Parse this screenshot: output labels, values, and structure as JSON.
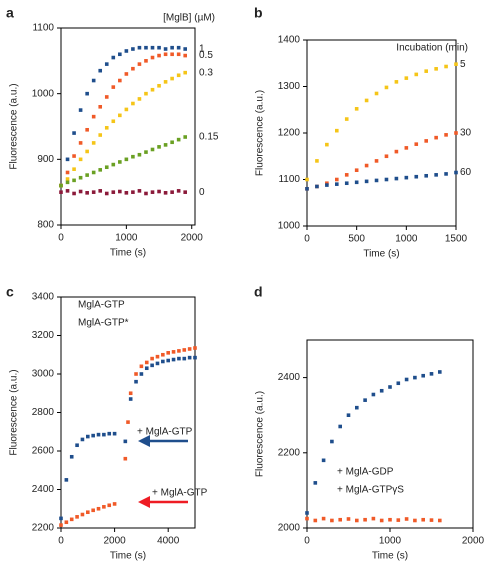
{
  "chart_data": [
    {
      "type": "scatter",
      "panel": "a",
      "xlabel": "Time (s)",
      "ylabel": "Fluorescence (a.u.)",
      "legend_title": "[MglB] (µM)",
      "legend": "end-labels",
      "xlim": [
        0,
        2050
      ],
      "ylim": [
        800,
        1100
      ],
      "xticks": [
        0,
        1000,
        2000
      ],
      "yticks": [
        800,
        900,
        1000,
        1100
      ],
      "x": [
        0,
        100,
        200,
        300,
        400,
        500,
        600,
        700,
        800,
        900,
        1000,
        1100,
        1200,
        1300,
        1400,
        1500,
        1600,
        1700,
        1800,
        1900
      ],
      "series": [
        {
          "name": "1",
          "color": "#1f4e8c",
          "values": [
            860,
            900,
            940,
            975,
            1000,
            1020,
            1035,
            1045,
            1055,
            1060,
            1065,
            1068,
            1070,
            1070,
            1070,
            1070,
            1068,
            1070,
            1070,
            1068
          ]
        },
        {
          "name": "0.5",
          "color": "#f05a28",
          "values": [
            860,
            880,
            905,
            925,
            945,
            965,
            980,
            995,
            1010,
            1020,
            1030,
            1038,
            1045,
            1050,
            1055,
            1058,
            1060,
            1060,
            1060,
            1058
          ]
        },
        {
          "name": "0.3",
          "color": "#f5c518",
          "values": [
            860,
            870,
            885,
            900,
            912,
            925,
            937,
            948,
            958,
            967,
            976,
            985,
            992,
            1000,
            1006,
            1012,
            1018,
            1023,
            1028,
            1032
          ]
        },
        {
          "name": "0.15",
          "color": "#6aa023",
          "values": [
            860,
            865,
            868,
            872,
            876,
            880,
            884,
            888,
            892,
            896,
            900,
            904,
            907,
            911,
            915,
            919,
            922,
            926,
            930,
            934
          ]
        },
        {
          "name": "0",
          "color": "#8b1a3a",
          "values": [
            850,
            852,
            848,
            851,
            849,
            850,
            852,
            848,
            850,
            851,
            849,
            850,
            852,
            848,
            850,
            851,
            849,
            850,
            852,
            850
          ]
        }
      ]
    },
    {
      "type": "scatter",
      "panel": "b",
      "xlabel": "Time (s)",
      "ylabel": "Fluorescence (a.u.)",
      "legend_title": "Incubation (min)",
      "legend": "end-labels",
      "xlim": [
        0,
        1500
      ],
      "ylim": [
        1000,
        1400
      ],
      "xticks": [
        0,
        500,
        1000,
        1500
      ],
      "yticks": [
        1000,
        1100,
        1200,
        1300,
        1400
      ],
      "x": [
        0,
        100,
        200,
        300,
        400,
        500,
        600,
        700,
        800,
        900,
        1000,
        1100,
        1200,
        1300,
        1400,
        1500
      ],
      "series": [
        {
          "name": "5",
          "color": "#f5c518",
          "values": [
            1100,
            1140,
            1175,
            1205,
            1230,
            1252,
            1270,
            1285,
            1298,
            1310,
            1318,
            1326,
            1333,
            1338,
            1343,
            1348
          ]
        },
        {
          "name": "30",
          "color": "#f05a28",
          "values": [
            1080,
            1085,
            1092,
            1100,
            1110,
            1120,
            1130,
            1140,
            1150,
            1160,
            1168,
            1176,
            1183,
            1190,
            1196,
            1200
          ]
        },
        {
          "name": "60",
          "color": "#1f4e8c",
          "values": [
            1080,
            1085,
            1088,
            1090,
            1092,
            1094,
            1096,
            1098,
            1100,
            1102,
            1104,
            1106,
            1108,
            1110,
            1112,
            1115
          ]
        }
      ]
    },
    {
      "type": "scatter",
      "panel": "c",
      "xlabel": "Time (s)",
      "ylabel": "Fluorescence (a.u.)",
      "legend": "upper left",
      "xlim": [
        0,
        5000
      ],
      "ylim": [
        2200,
        3400
      ],
      "xticks": [
        0,
        2000,
        4000
      ],
      "yticks": [
        2200,
        2400,
        2600,
        2800,
        3000,
        3200,
        3400
      ],
      "annotations": [
        "+ MglA-GTP",
        "+ MglA-GTP"
      ],
      "series": [
        {
          "name": "MglA-GTP",
          "color": "#1f4e8c",
          "x": [
            0,
            200,
            400,
            600,
            800,
            1000,
            1200,
            1400,
            1600,
            1800,
            2000,
            2400,
            2600,
            2800,
            3000,
            3200,
            3400,
            3600,
            3800,
            4000,
            4200,
            4400,
            4600,
            4800,
            5000
          ],
          "values": [
            2250,
            2450,
            2570,
            2630,
            2660,
            2675,
            2680,
            2685,
            2685,
            2690,
            2690,
            2650,
            2870,
            2960,
            3000,
            3030,
            3045,
            3055,
            3065,
            3070,
            3075,
            3080,
            3080,
            3085,
            3085
          ]
        },
        {
          "name": "MglA-GTP*",
          "color": "#f05a28",
          "x": [
            0,
            200,
            400,
            600,
            800,
            1000,
            1200,
            1400,
            1600,
            1800,
            2000,
            2400,
            2500,
            2600,
            2800,
            3000,
            3200,
            3400,
            3600,
            3800,
            4000,
            4200,
            4400,
            4600,
            4800,
            5000
          ],
          "values": [
            2215,
            2230,
            2245,
            2258,
            2270,
            2282,
            2292,
            2300,
            2310,
            2318,
            2325,
            2560,
            2750,
            2900,
            3000,
            3040,
            3060,
            3080,
            3090,
            3100,
            3110,
            3115,
            3120,
            3125,
            3130,
            3135
          ]
        }
      ]
    },
    {
      "type": "scatter",
      "panel": "d",
      "xlabel": "Time (s)",
      "ylabel": "Fluorescence (a.u.)",
      "legend": "lower left",
      "xlim": [
        0,
        2000
      ],
      "ylim": [
        2000,
        2500
      ],
      "xticks": [
        0,
        1000,
        2000
      ],
      "yticks": [
        2000,
        2200,
        2400
      ],
      "x": [
        0,
        100,
        200,
        300,
        400,
        500,
        600,
        700,
        800,
        900,
        1000,
        1100,
        1200,
        1300,
        1400,
        1500,
        1600
      ],
      "series": [
        {
          "name": "+ MglA-GDP",
          "color": "#1f4e8c",
          "values": [
            2040,
            2120,
            2180,
            2230,
            2270,
            2300,
            2320,
            2340,
            2355,
            2365,
            2375,
            2385,
            2395,
            2400,
            2405,
            2410,
            2415
          ]
        },
        {
          "name": "+ MglA-GTPγS",
          "color": "#f05a28",
          "values": [
            2025,
            2020,
            2025,
            2020,
            2022,
            2024,
            2020,
            2022,
            2025,
            2020,
            2022,
            2021,
            2024,
            2020,
            2022,
            2021,
            2020
          ]
        }
      ]
    }
  ]
}
